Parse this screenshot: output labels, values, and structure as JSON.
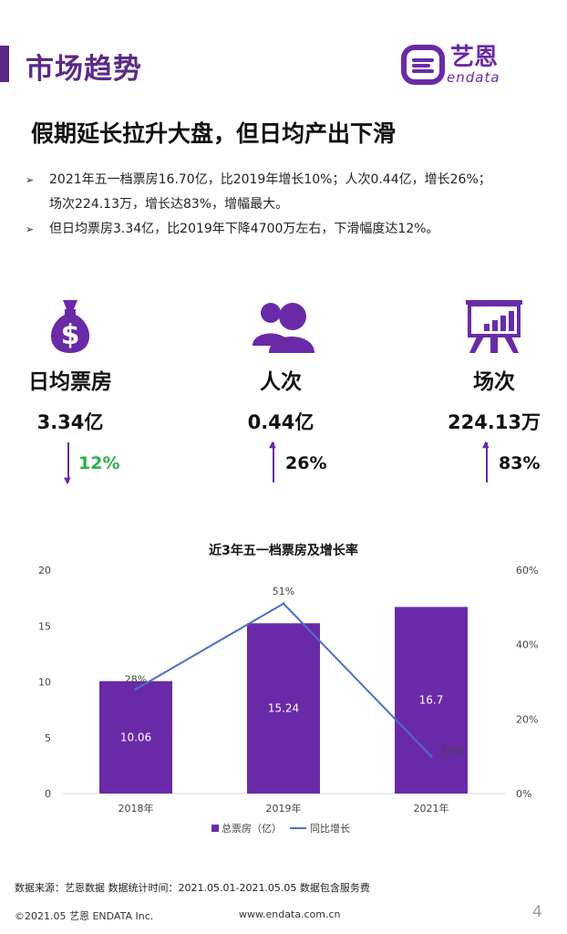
{
  "header": {
    "title": "市场趋势",
    "logo_cn": "艺恩",
    "logo_en": "endata"
  },
  "headline": "假期延长拉升大盘，但日均产出下滑",
  "bullets": [
    {
      "line1": "2021年五一档票房16.70亿，比2019年增长10%；人次0.44亿，增长26%；",
      "line2": "场次224.13万，增长达83%，增幅最大。"
    },
    {
      "line1": "但日均票房3.34亿，比2019年下降4700万左右，下滑幅度达12%。",
      "line2": ""
    }
  ],
  "kpis": [
    {
      "icon": "money-bag-icon",
      "label": "日均票房",
      "value": "3.34亿",
      "change": "12%",
      "direction": "down",
      "color": "#2bb24c"
    },
    {
      "icon": "people-icon",
      "label": "人次",
      "value": "0.44亿",
      "change": "26%",
      "direction": "up",
      "color": "#111111"
    },
    {
      "icon": "screening-board-icon",
      "label": "场次",
      "value": "224.13万",
      "change": "83%",
      "direction": "up",
      "color": "#111111"
    }
  ],
  "chart_data": {
    "type": "bar",
    "title": "近3年五一档票房及增长率",
    "categories": [
      "2018年",
      "2019年",
      "2021年"
    ],
    "series": [
      {
        "name": "总票房（亿）",
        "type": "bar",
        "axis": "left",
        "values": [
          10.06,
          15.24,
          16.7
        ],
        "labels": [
          "10.06",
          "15.24",
          "16.7"
        ],
        "color": "#6a2aa8"
      },
      {
        "name": "同比增长",
        "type": "line",
        "axis": "right",
        "values": [
          28,
          51,
          10
        ],
        "labels": [
          "28%",
          "51%",
          "10%"
        ],
        "color": "#4a6fc9"
      }
    ],
    "ylim_left": [
      0,
      20
    ],
    "yticks_left": [
      "0",
      "5",
      "10",
      "15",
      "20"
    ],
    "ylim_right": [
      0,
      60
    ],
    "yticks_right": [
      "0%",
      "20%",
      "40%",
      "60%"
    ],
    "grid": false,
    "legend_position": "bottom"
  },
  "source": "数据来源：艺恩数据   数据统计时间：2021.05.01-2021.05.05 数据包含服务费",
  "footer": {
    "copyright": "©2021.05 艺恩 ENDATA Inc.",
    "website": "www.endata.com.cn",
    "page": "4"
  }
}
